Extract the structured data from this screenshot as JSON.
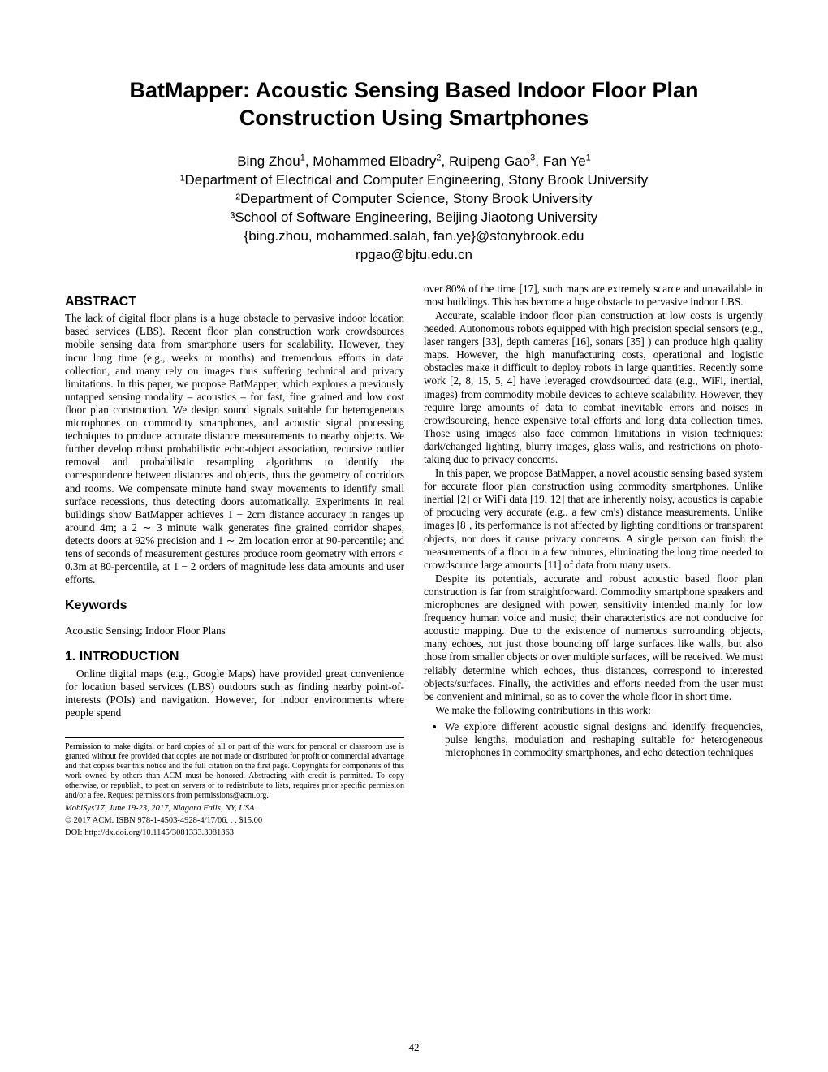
{
  "title": "BatMapper: Acoustic Sensing Based Indoor Floor Plan Construction Using Smartphones",
  "authors_line": "Bing Zhou¹, Mohammed Elbadry², Ruipeng Gao³, Fan Ye¹",
  "affil1": "¹Department of Electrical and Computer Engineering, Stony Brook University",
  "affil2": "²Department of Computer Science, Stony Brook University",
  "affil3": "³School of Software Engineering, Beijing Jiaotong University",
  "emails1": "{bing.zhou, mohammed.salah, fan.ye}@stonybrook.edu",
  "emails2": "rpgao@bjtu.edu.cn",
  "abstract_h": "ABSTRACT",
  "abstract": "The lack of digital floor plans is a huge obstacle to pervasive indoor location based services (LBS). Recent floor plan construction work crowdsources mobile sensing data from smartphone users for scalability. However, they incur long time (e.g., weeks or months) and tremendous efforts in data collection, and many rely on images thus suffering technical and privacy limitations. In this paper, we propose BatMapper, which explores a previously untapped sensing modality – acoustics – for fast, fine grained and low cost floor plan construction. We design sound signals suitable for heterogeneous microphones on commodity smartphones, and acoustic signal processing techniques to produce accurate distance measurements to nearby objects. We further develop robust probabilistic echo-object association, recursive outlier removal and probabilistic resampling algorithms to identify the correspondence between distances and objects, thus the geometry of corridors and rooms. We compensate minute hand sway movements to identify small surface recessions, thus detecting doors automatically. Experiments in real buildings show BatMapper achieves 1 − 2cm distance accuracy in ranges up around 4m; a 2 ∼ 3 minute walk generates fine grained corridor shapes, detects doors at 92% precision and 1 ∼ 2m location error at 90-percentile; and tens of seconds of measurement gestures produce room geometry with errors < 0.3m at 80-percentile, at 1 − 2 orders of magnitude less data amounts and user efforts.",
  "keywords_h": "Keywords",
  "keywords": "Acoustic Sensing; Indoor Floor Plans",
  "intro_h": "1.   INTRODUCTION",
  "intro_p1": "Online digital maps (e.g., Google Maps) have provided great convenience for location based services (LBS) outdoors such as finding nearby point-of-interests (POIs) and navigation. However, for indoor environments where people spend",
  "permission": "Permission to make digital or hard copies of all or part of this work for personal or classroom use is granted without fee provided that copies are not made or distributed for profit or commercial advantage and that copies bear this notice and the full citation on the first page. Copyrights for components of this work owned by others than ACM must be honored. Abstracting with credit is permitted. To copy otherwise, or republish, to post on servers or to redistribute to lists, requires prior specific permission and/or a fee. Request permissions from permissions@acm.org.",
  "venue": "MobiSys'17, June 19-23, 2017, Niagara Falls, NY, USA",
  "copyright_line": "© 2017 ACM. ISBN 978-1-4503-4928-4/17/06. . . $15.00",
  "doi": "DOI: http://dx.doi.org/10.1145/3081333.3081363",
  "right_p1": "over 80% of the time [17], such maps are extremely scarce and unavailable in most buildings. This has become a huge obstacle to pervasive indoor LBS.",
  "right_p2": "Accurate, scalable indoor floor plan construction at low costs is urgently needed. Autonomous robots equipped with high precision special sensors (e.g., laser rangers [33], depth cameras [16], sonars [35] ) can produce high quality maps. However, the high manufacturing costs, operational and logistic obstacles make it difficult to deploy robots in large quantities. Recently some work [2, 8, 15, 5, 4] have leveraged crowdsourced data (e.g., WiFi, inertial, images) from commodity mobile devices to achieve scalability. However, they require large amounts of data to combat inevitable errors and noises in crowdsourcing, hence expensive total efforts and long data collection times. Those using images also face common limitations in vision techniques: dark/changed lighting, blurry images, glass walls, and restrictions on photo-taking due to privacy concerns.",
  "right_p3": "In this paper, we propose BatMapper, a novel acoustic sensing based system for accurate floor plan construction using commodity smartphones. Unlike inertial [2] or WiFi data [19, 12] that are inherently noisy, acoustics is capable of producing very accurate (e.g., a few cm's) distance measurements. Unlike images [8], its performance is not affected by lighting conditions or transparent objects, nor does it cause privacy concerns. A single person can finish the measurements of a floor in a few minutes, eliminating the long time needed to crowdsource large amounts [11] of data from many users.",
  "right_p4": "Despite its potentials, accurate and robust acoustic based floor plan construction is far from straightforward. Commodity smartphone speakers and microphones are designed with power, sensitivity intended mainly for low frequency human voice and music; their characteristics are not conducive for acoustic mapping. Due to the existence of numerous surrounding objects, many echoes, not just those bouncing off large surfaces like walls, but also those from smaller objects or over multiple surfaces, will be received. We must reliably determine which echoes, thus distances, correspond to interested objects/surfaces. Finally, the activities and efforts needed from the user must be convenient and minimal, so as to cover the whole floor in short time.",
  "right_p5": "We make the following contributions in this work:",
  "bullet1": "We explore different acoustic signal designs and identify frequencies, pulse lengths, modulation and reshaping suitable for heterogeneous microphones in commodity smartphones, and echo detection techniques",
  "page_num": "42"
}
